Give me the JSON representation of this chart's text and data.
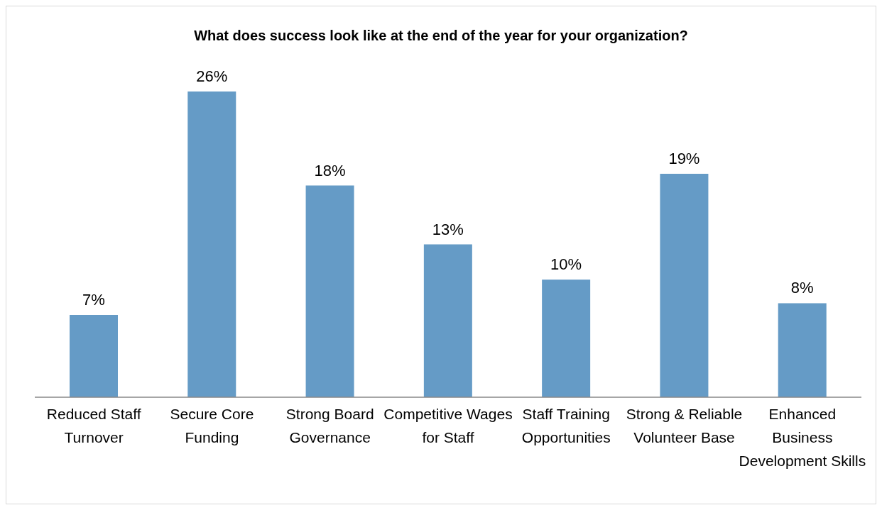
{
  "chart_data": {
    "type": "bar",
    "title": "What does success look like at the end of the year for your organization?",
    "categories": [
      "Reduced Staff Turnover",
      "Secure Core Funding",
      "Strong Board Governance",
      "Competitive Wages for Staff",
      "Staff Training Opportunities",
      "Strong & Reliable Volunteer Base",
      "Enhanced Business Development Skills"
    ],
    "values": [
      7,
      26,
      18,
      13,
      10,
      19,
      8
    ],
    "value_labels": [
      "7%",
      "26%",
      "18%",
      "13%",
      "10%",
      "19%",
      "8%"
    ],
    "color": "#659bc6",
    "grid": false,
    "legend": false
  }
}
